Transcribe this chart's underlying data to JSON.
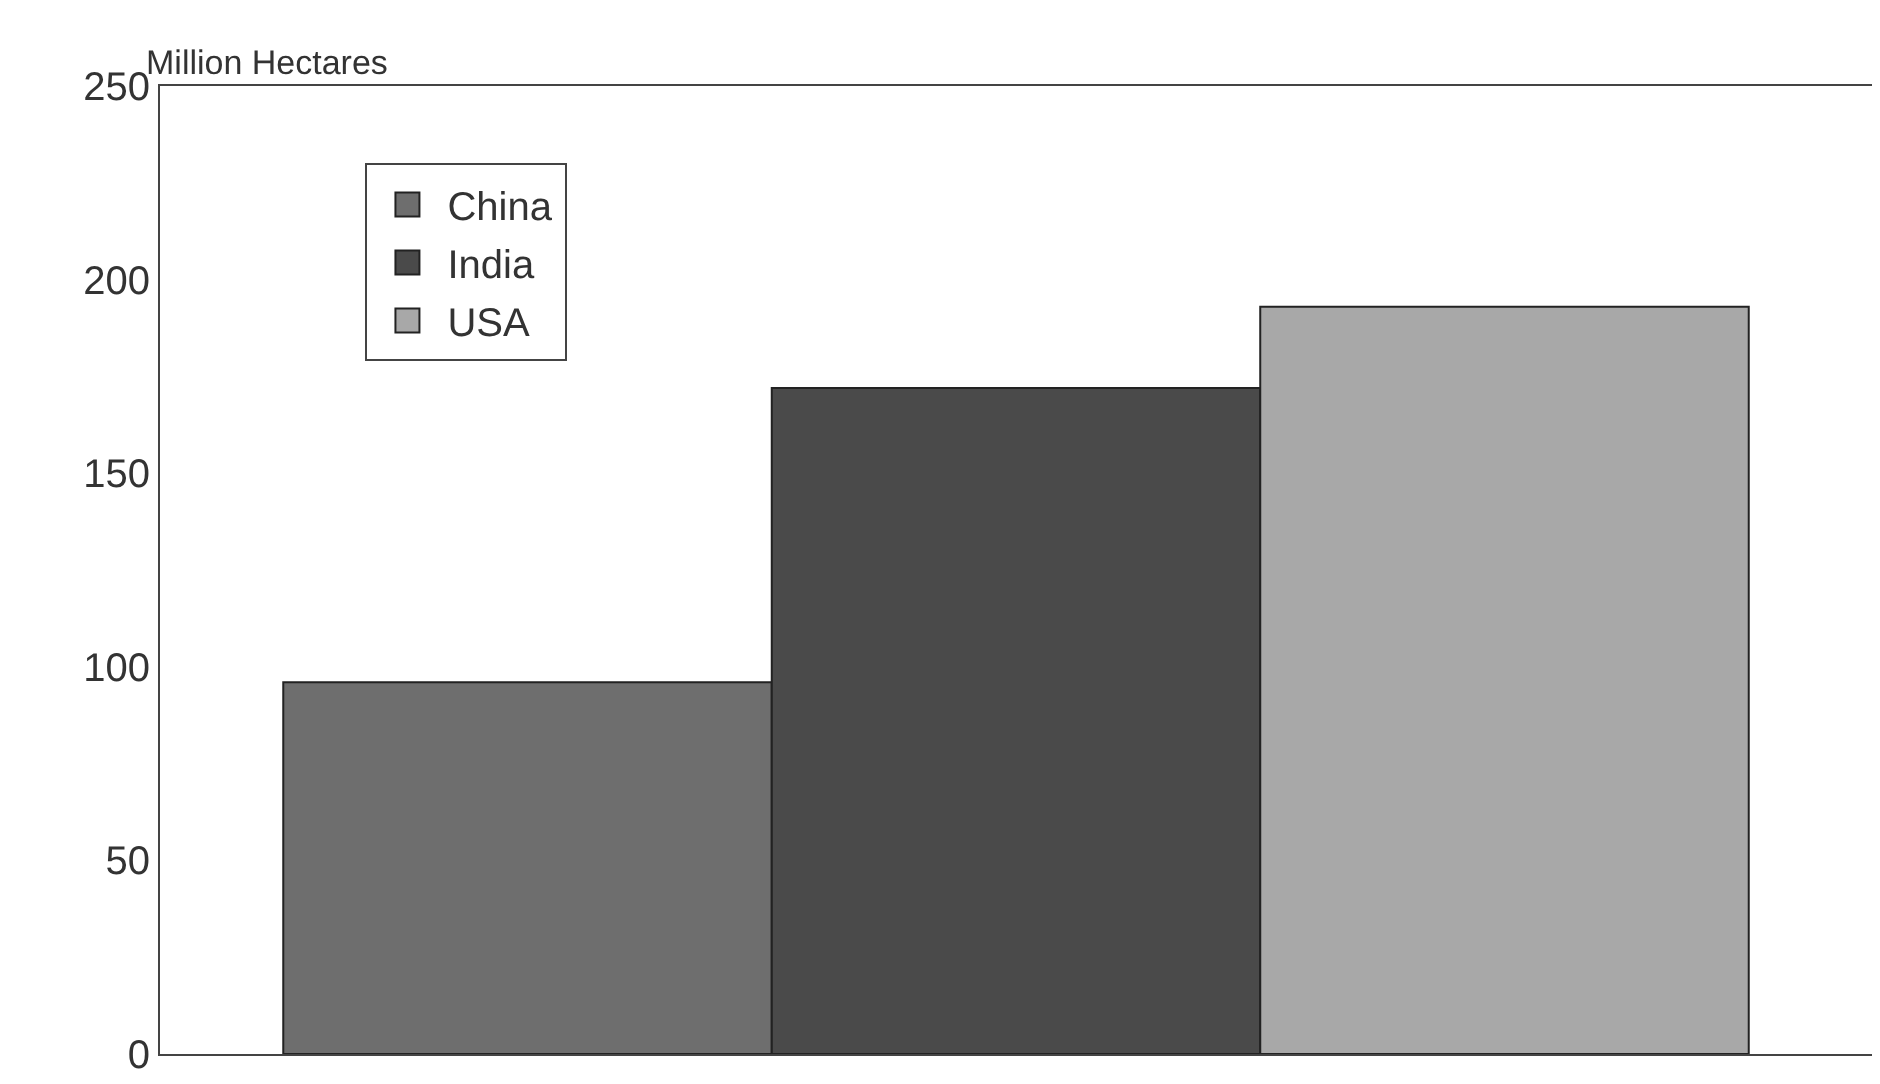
{
  "chart_data": {
    "type": "bar",
    "ylabel": "Million Hectares",
    "categories": [
      null
    ],
    "series": [
      {
        "name": "China",
        "color": "#6e6e6e",
        "values": [
          96
        ]
      },
      {
        "name": "India",
        "color": "#4a4a4a",
        "values": [
          172
        ]
      },
      {
        "name": "USA",
        "color": "#a8a8a8",
        "values": [
          193
        ]
      }
    ],
    "ylim": [
      0,
      250
    ],
    "yticks": [
      0,
      50,
      100,
      150,
      200,
      250
    ],
    "grid": false,
    "legend": "top left",
    "tick_labels": "y"
  }
}
